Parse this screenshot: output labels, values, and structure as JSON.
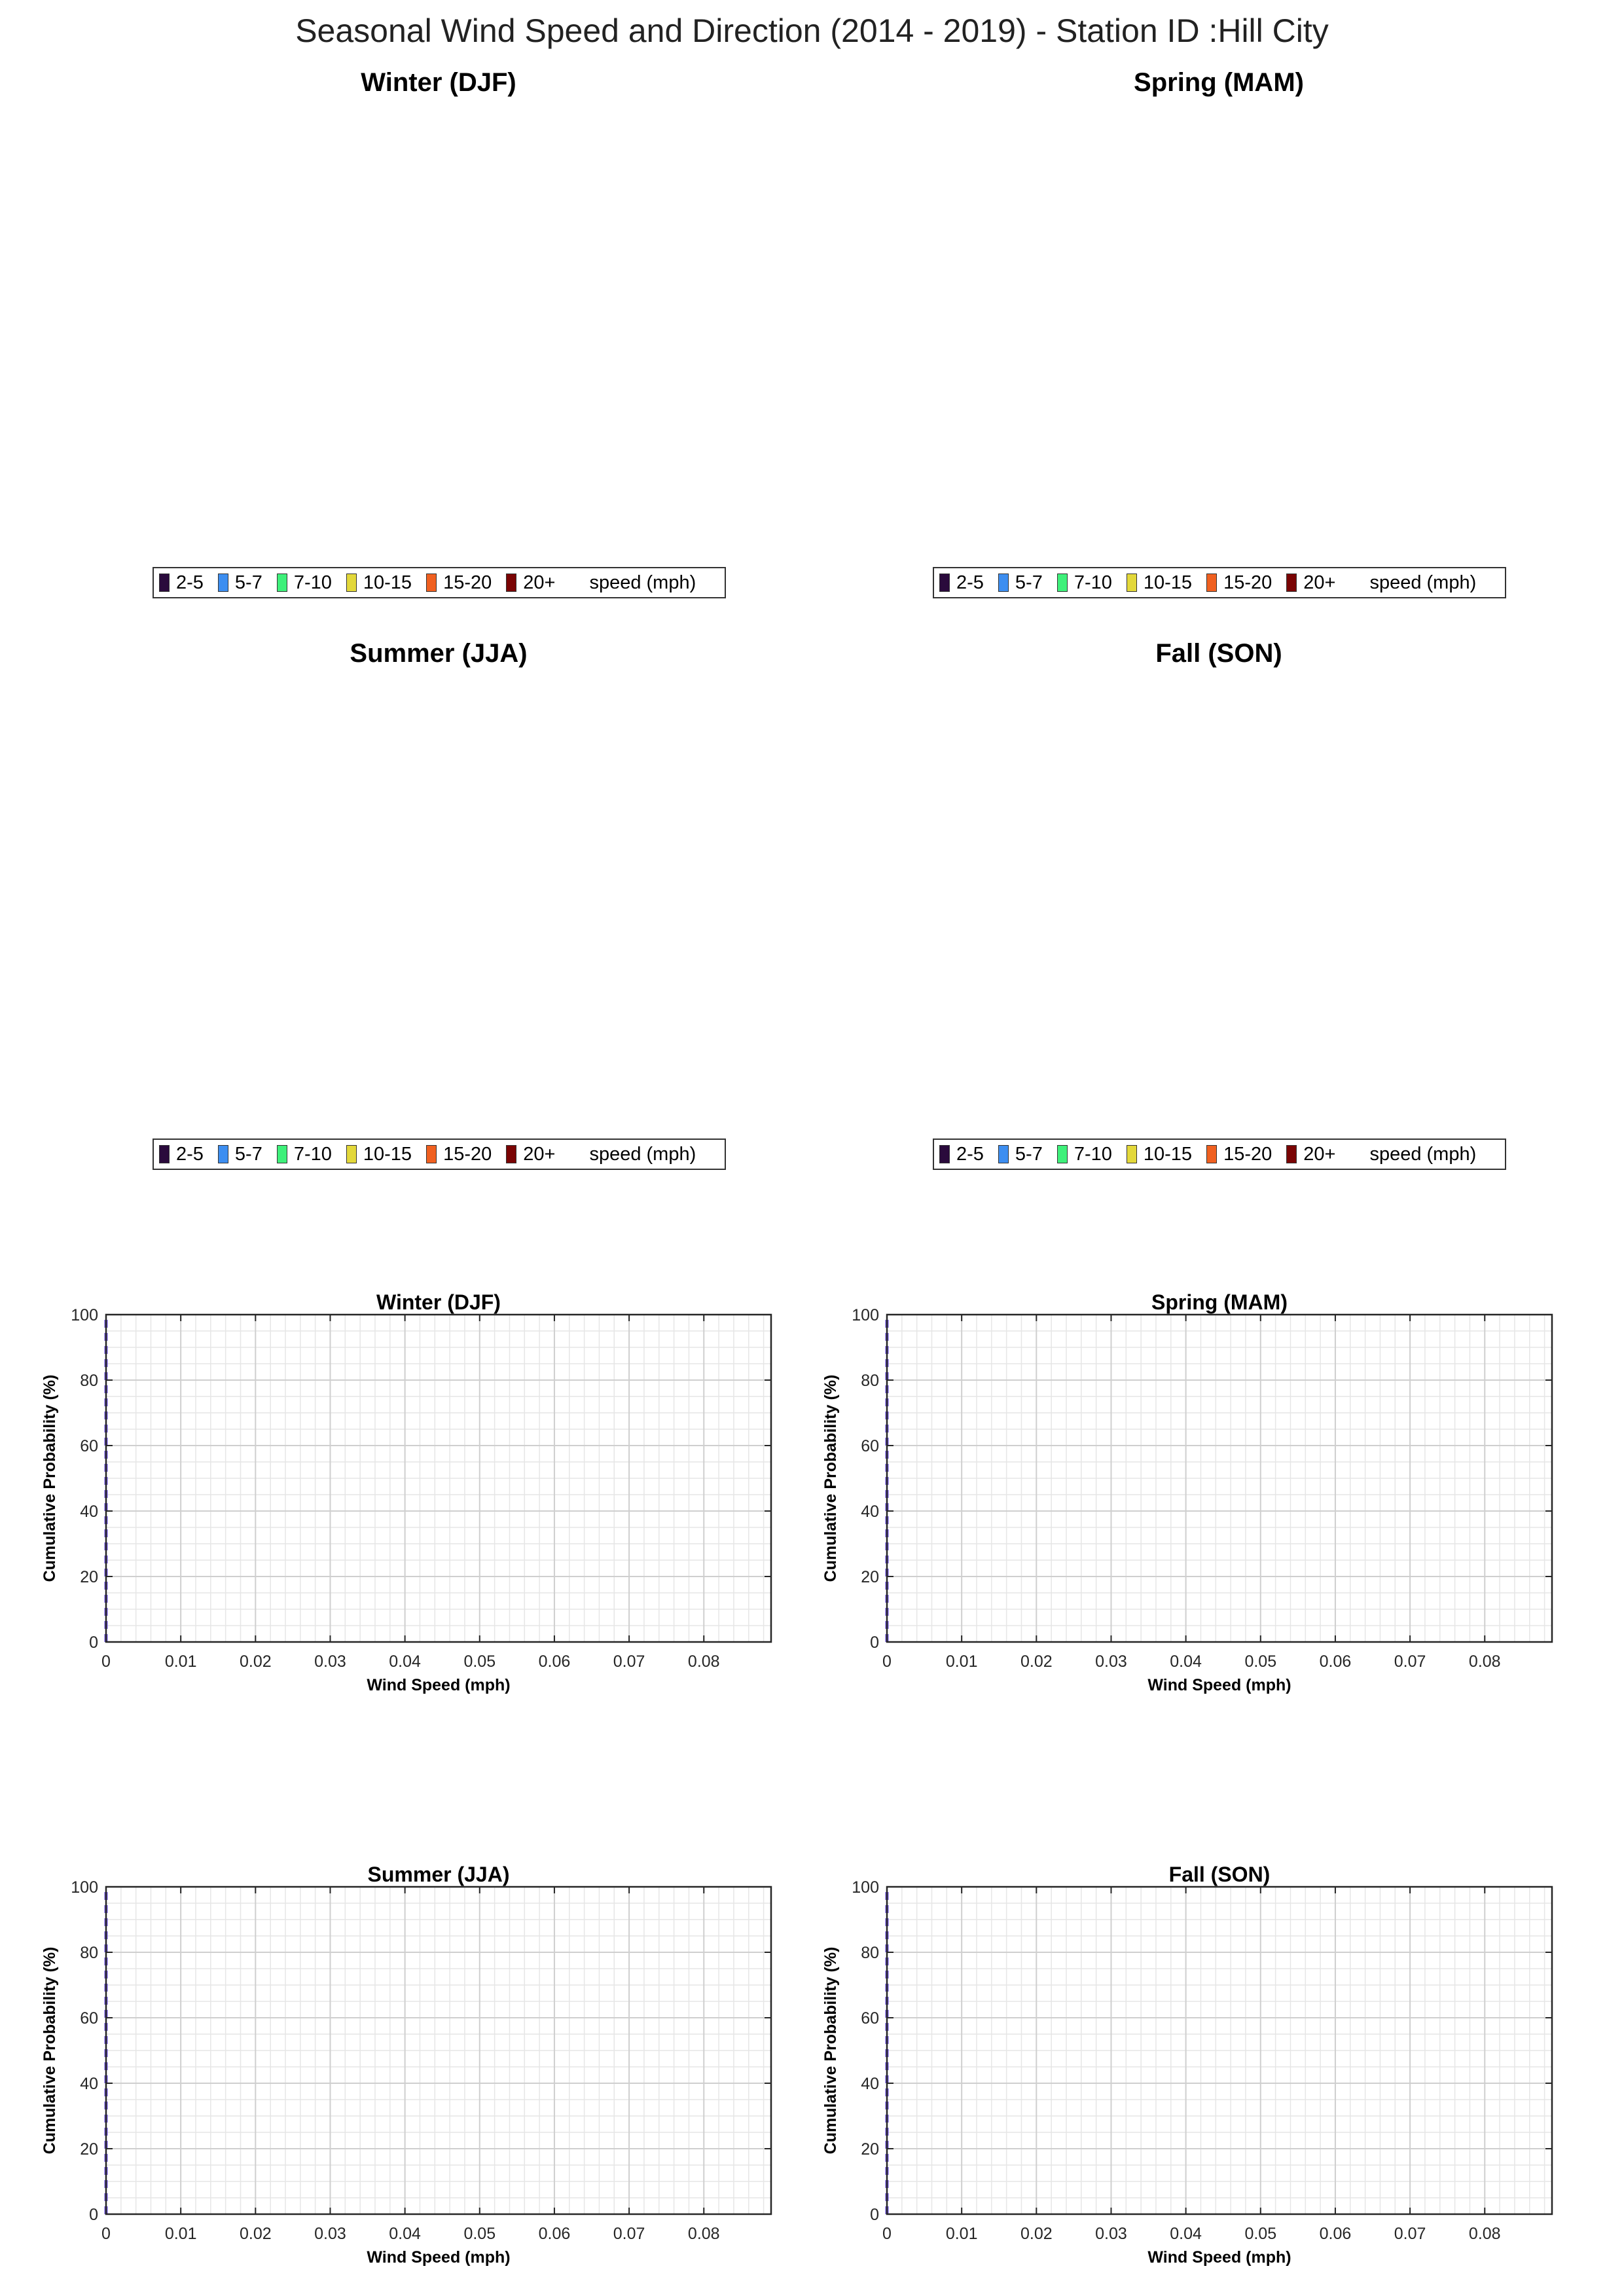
{
  "figure": {
    "title": "Seasonal Wind Speed and Direction (2014 - 2019) - Station ID :Hill City"
  },
  "legend": {
    "entries": [
      {
        "label": "2-5",
        "color": "#2a0a3c"
      },
      {
        "label": "5-7",
        "color": "#3d8ef0"
      },
      {
        "label": "7-10",
        "color": "#3ef07a"
      },
      {
        "label": "10-15",
        "color": "#e3d83a"
      },
      {
        "label": "15-20",
        "color": "#f06020"
      },
      {
        "label": "20+",
        "color": "#7a0404"
      }
    ],
    "unit_label": "speed (mph)"
  },
  "chart_data": [
    {
      "type": "rose",
      "title": "Winter (DJF)",
      "series": []
    },
    {
      "type": "rose",
      "title": "Spring (MAM)",
      "series": []
    },
    {
      "type": "rose",
      "title": "Summer (JJA)",
      "series": []
    },
    {
      "type": "rose",
      "title": "Fall (SON)",
      "series": []
    },
    {
      "type": "line",
      "title": "Winter (DJF)",
      "xlabel": "Wind Speed (mph)",
      "ylabel": "Cumulative Probability (%)",
      "xlim": [
        0,
        0.089
      ],
      "ylim": [
        0,
        100
      ],
      "xticks": [
        "0",
        "0.01",
        "0.02",
        "0.03",
        "0.04",
        "0.05",
        "0.06",
        "0.07",
        "0.08"
      ],
      "yticks": [
        "0",
        "20",
        "40",
        "60",
        "80",
        "100"
      ],
      "grid": true,
      "minor_grid": true,
      "series": [
        {
          "x": [
            0,
            0
          ],
          "y": [
            0,
            100
          ],
          "color": "#6a4fd8",
          "style": "dashed"
        }
      ]
    },
    {
      "type": "line",
      "title": "Spring (MAM)",
      "xlabel": "Wind Speed (mph)",
      "ylabel": "Cumulative Probability (%)",
      "xlim": [
        0,
        0.089
      ],
      "ylim": [
        0,
        100
      ],
      "xticks": [
        "0",
        "0.01",
        "0.02",
        "0.03",
        "0.04",
        "0.05",
        "0.06",
        "0.07",
        "0.08"
      ],
      "yticks": [
        "0",
        "20",
        "40",
        "60",
        "80",
        "100"
      ],
      "grid": true,
      "minor_grid": true,
      "series": [
        {
          "x": [
            0,
            0
          ],
          "y": [
            0,
            100
          ],
          "color": "#6a4fd8",
          "style": "dashed"
        }
      ]
    },
    {
      "type": "line",
      "title": "Summer (JJA)",
      "xlabel": "Wind Speed (mph)",
      "ylabel": "Cumulative Probability (%)",
      "xlim": [
        0,
        0.089
      ],
      "ylim": [
        0,
        100
      ],
      "xticks": [
        "0",
        "0.01",
        "0.02",
        "0.03",
        "0.04",
        "0.05",
        "0.06",
        "0.07",
        "0.08"
      ],
      "yticks": [
        "0",
        "20",
        "40",
        "60",
        "80",
        "100"
      ],
      "grid": true,
      "minor_grid": true,
      "series": [
        {
          "x": [
            0,
            0
          ],
          "y": [
            0,
            100
          ],
          "color": "#6a4fd8",
          "style": "dashed"
        }
      ]
    },
    {
      "type": "line",
      "title": "Fall (SON)",
      "xlabel": "Wind Speed (mph)",
      "ylabel": "Cumulative Probability (%)",
      "xlim": [
        0,
        0.089
      ],
      "ylim": [
        0,
        100
      ],
      "xticks": [
        "0",
        "0.01",
        "0.02",
        "0.03",
        "0.04",
        "0.05",
        "0.06",
        "0.07",
        "0.08"
      ],
      "yticks": [
        "0",
        "20",
        "40",
        "60",
        "80",
        "100"
      ],
      "grid": true,
      "minor_grid": true,
      "series": [
        {
          "x": [
            0,
            0
          ],
          "y": [
            0,
            100
          ],
          "color": "#6a4fd8",
          "style": "dashed"
        }
      ]
    }
  ]
}
